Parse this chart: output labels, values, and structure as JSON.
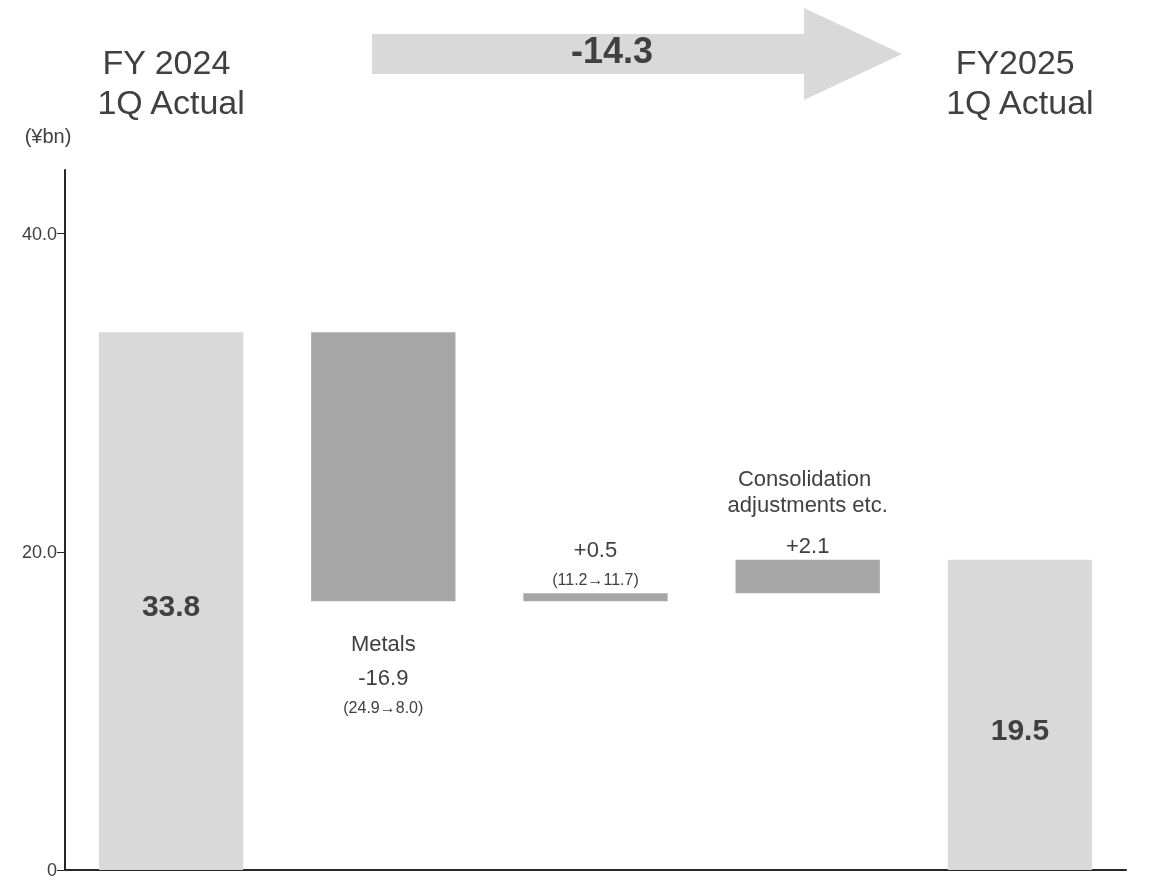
{
  "chart_data": {
    "type": "bar",
    "categories": [
      "FY 2024 1Q Actual",
      "Metals",
      null,
      "Consolidation adjustments etc.",
      "FY2025 1Q Actual"
    ],
    "values": [
      33.8,
      -16.9,
      0.5,
      2.1,
      19.5
    ],
    "base": [
      0,
      33.8,
      16.9,
      17.4,
      0
    ],
    "colors": [
      "#d9d9d9",
      "#a6a6a6",
      "#a6a6a6",
      "#a6a6a6",
      "#d9d9d9"
    ],
    "value_labels": [
      "33.8",
      "-16.9",
      "+0.5",
      "+2.1",
      "19.5"
    ],
    "annotations": [
      "-14.3",
      "(24.9→8.0)",
      "(11.2→11.7)"
    ],
    "ylabel": "(¥bn)",
    "ylim": [
      0,
      44
    ],
    "yticks": [
      0,
      {
        "value": 20,
        "label": "20.0"
      },
      {
        "value": 40,
        "label": "40.0"
      }
    ],
    "grid": false
  }
}
